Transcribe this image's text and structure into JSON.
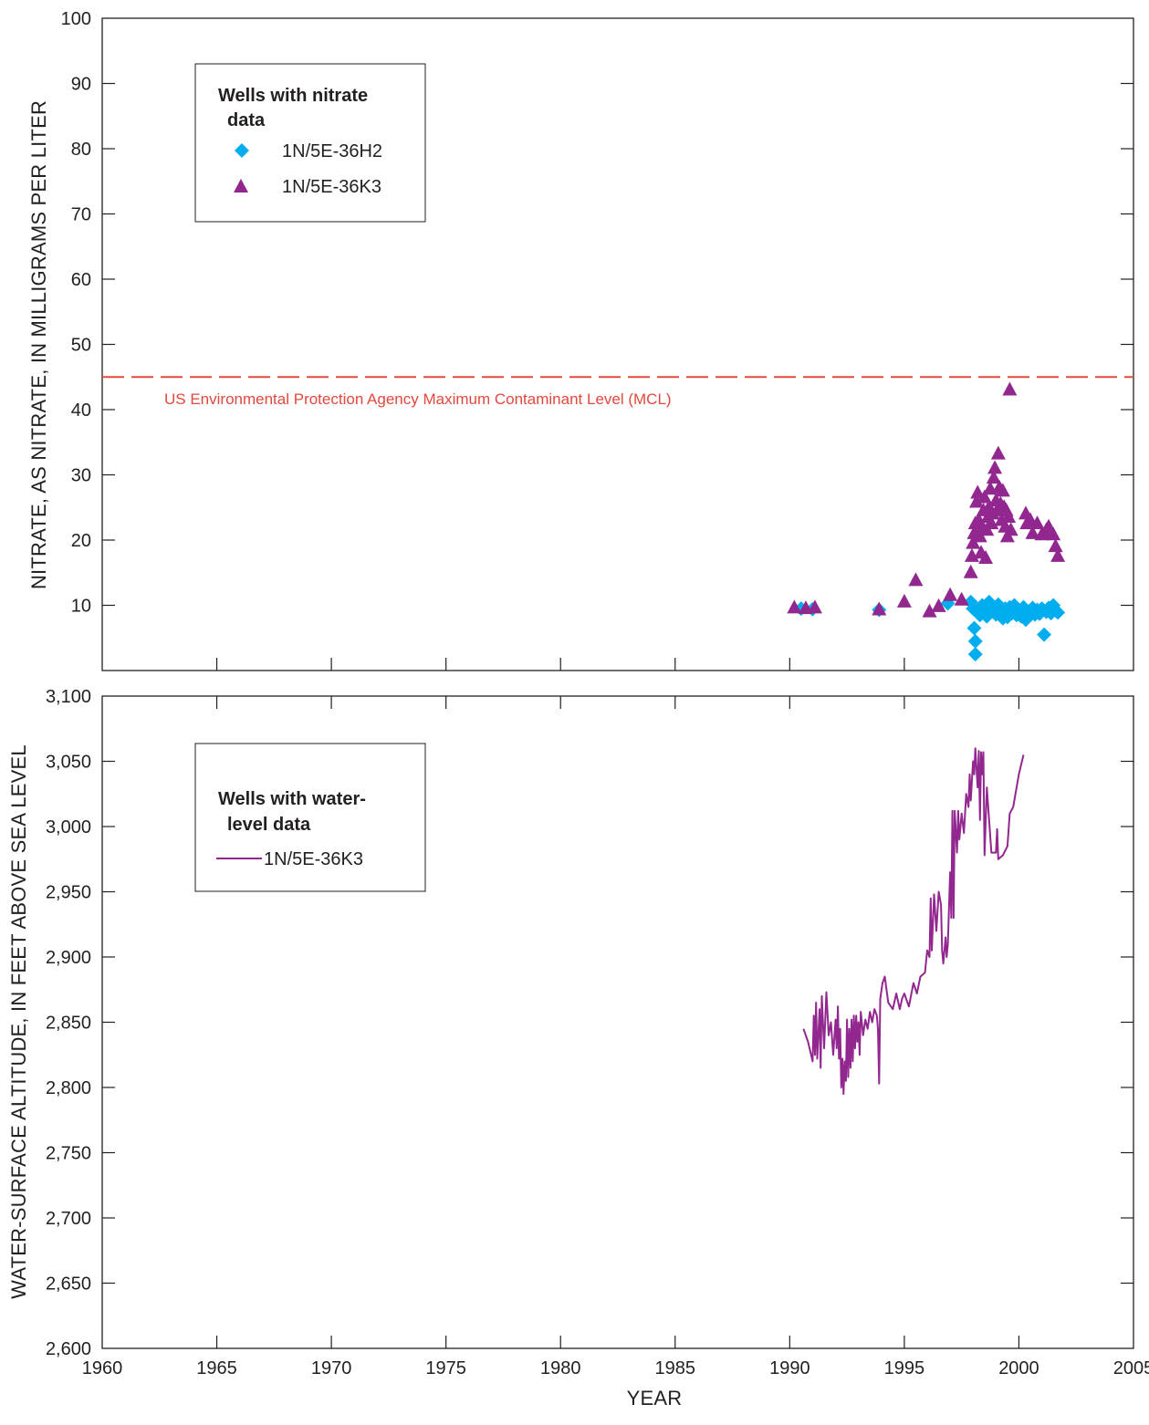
{
  "colors": {
    "axis": "#231f20",
    "h2": "#00aeef",
    "k3": "#92278f",
    "mcl": "#e2483d"
  },
  "icons": {
    "h2_marker": "diamond-icon",
    "k3_marker": "triangle-icon"
  },
  "x_axis": {
    "label": "YEAR",
    "xlim": [
      1960,
      2005
    ],
    "ticks": [
      "1960",
      "1965",
      "1970",
      "1975",
      "1980",
      "1985",
      "1990",
      "1995",
      "2000",
      "2005"
    ]
  },
  "top": {
    "ylabel": "NITRATE, AS NITRATE, IN MILLIGRAMS PER LITER",
    "ylim": [
      0,
      100
    ],
    "yticks": [
      "10",
      "20",
      "30",
      "40",
      "50",
      "60",
      "70",
      "80",
      "90",
      "100"
    ],
    "legend": {
      "title_line1": "Wells with nitrate",
      "title_line2": "data",
      "item1": "1N/5E-36H2",
      "item2": "1N/5E-36K3"
    },
    "mcl_label": "US Environmental Protection Agency Maximum Contaminant Level (MCL)"
  },
  "bottom": {
    "ylabel": "WATER-SURFACE ALTITUDE, IN FEET ABOVE SEA LEVEL",
    "ylim": [
      2600,
      3100
    ],
    "yticks": [
      "2,600",
      "2,650",
      "2,700",
      "2,750",
      "2,800",
      "2,850",
      "2,900",
      "2,950",
      "3,000",
      "3,050",
      "3,100"
    ],
    "legend": {
      "title_line1": "Wells with water-",
      "title_line2": "level data",
      "item1": "1N/5E-36K3"
    }
  },
  "chart_data": [
    {
      "type": "scatter",
      "title": "",
      "xlabel": "YEAR",
      "ylabel": "NITRATE, AS NITRATE, IN MILLIGRAMS PER LITER",
      "xlim": [
        1960,
        2005
      ],
      "ylim": [
        0,
        100
      ],
      "grid": false,
      "legend": "top-left",
      "mcl": 45,
      "series": [
        {
          "name": "1N/5E-36H2",
          "marker": "diamond",
          "points": [
            [
              1990.5,
              9.5
            ],
            [
              1991.0,
              9.4
            ],
            [
              1993.9,
              9.3
            ],
            [
              1996.9,
              10.3
            ],
            [
              1997.9,
              10.5
            ],
            [
              1998.0,
              9.5
            ],
            [
              1998.05,
              6.5
            ],
            [
              1998.1,
              4.5
            ],
            [
              1998.1,
              2.5
            ],
            [
              1998.2,
              9.0
            ],
            [
              1998.3,
              8.5
            ],
            [
              1998.4,
              10.0
            ],
            [
              1998.5,
              9.2
            ],
            [
              1998.6,
              8.3
            ],
            [
              1998.7,
              10.5
            ],
            [
              1998.8,
              9.0
            ],
            [
              1998.9,
              9.6
            ],
            [
              1999.0,
              8.6
            ],
            [
              1999.1,
              10.1
            ],
            [
              1999.2,
              9.2
            ],
            [
              1999.3,
              8.0
            ],
            [
              1999.4,
              9.5
            ],
            [
              1999.5,
              8.2
            ],
            [
              1999.6,
              9.7
            ],
            [
              1999.7,
              8.8
            ],
            [
              1999.8,
              10.0
            ],
            [
              1999.9,
              8.5
            ],
            [
              2000.0,
              9.2
            ],
            [
              2000.1,
              8.3
            ],
            [
              2000.2,
              9.7
            ],
            [
              2000.3,
              7.8
            ],
            [
              2000.4,
              9.0
            ],
            [
              2000.5,
              8.5
            ],
            [
              2000.6,
              9.6
            ],
            [
              2000.7,
              8.6
            ],
            [
              2000.8,
              9.3
            ],
            [
              2000.9,
              8.7
            ],
            [
              2001.0,
              9.5
            ],
            [
              2001.1,
              5.5
            ],
            [
              2001.2,
              9.0
            ],
            [
              2001.3,
              9.6
            ],
            [
              2001.4,
              8.8
            ],
            [
              2001.5,
              10.0
            ],
            [
              2001.6,
              9.2
            ],
            [
              2001.7,
              8.9
            ]
          ]
        },
        {
          "name": "1N/5E-36K3",
          "marker": "triangle",
          "points": [
            [
              1990.2,
              9.6
            ],
            [
              1990.7,
              9.5
            ],
            [
              1991.1,
              9.6
            ],
            [
              1993.9,
              9.3
            ],
            [
              1995.0,
              10.5
            ],
            [
              1995.5,
              13.8
            ],
            [
              1996.1,
              9.0
            ],
            [
              1996.5,
              9.8
            ],
            [
              1997.0,
              11.5
            ],
            [
              1997.5,
              10.8
            ],
            [
              1997.9,
              15.0
            ],
            [
              1997.95,
              17.5
            ],
            [
              1998.0,
              19.5
            ],
            [
              1998.05,
              21.0
            ],
            [
              1998.1,
              22.5
            ],
            [
              1998.15,
              25.8
            ],
            [
              1998.2,
              27.2
            ],
            [
              1998.25,
              23.0
            ],
            [
              1998.3,
              20.5
            ],
            [
              1998.35,
              18.0
            ],
            [
              1998.4,
              22.0
            ],
            [
              1998.45,
              24.5
            ],
            [
              1998.5,
              26.5
            ],
            [
              1998.55,
              17.2
            ],
            [
              1998.6,
              21.5
            ],
            [
              1998.65,
              23.5
            ],
            [
              1998.7,
              25.0
            ],
            [
              1998.75,
              27.8
            ],
            [
              1998.8,
              22.5
            ],
            [
              1998.85,
              24.0
            ],
            [
              1998.9,
              29.5
            ],
            [
              1998.95,
              31.0
            ],
            [
              1999.0,
              26.0
            ],
            [
              1999.05,
              24.5
            ],
            [
              1999.1,
              33.2
            ],
            [
              1999.15,
              28.0
            ],
            [
              1999.2,
              25.5
            ],
            [
              1999.25,
              23.0
            ],
            [
              1999.3,
              27.5
            ],
            [
              1999.35,
              25.0
            ],
            [
              1999.4,
              22.0
            ],
            [
              1999.45,
              24.5
            ],
            [
              1999.5,
              20.5
            ],
            [
              1999.55,
              23.5
            ],
            [
              1999.6,
              43.0
            ],
            [
              1999.65,
              21.5
            ],
            [
              2000.3,
              24.0
            ],
            [
              2000.35,
              22.5
            ],
            [
              2000.5,
              23.0
            ],
            [
              2000.6,
              21.0
            ],
            [
              2000.8,
              22.5
            ],
            [
              2001.0,
              20.8
            ],
            [
              2001.2,
              21.5
            ],
            [
              2001.3,
              22.0
            ],
            [
              2001.4,
              21.0
            ],
            [
              2001.5,
              20.8
            ],
            [
              2001.6,
              19.0
            ],
            [
              2001.7,
              17.5
            ]
          ]
        }
      ]
    },
    {
      "type": "line",
      "title": "",
      "xlabel": "YEAR",
      "ylabel": "WATER-SURFACE ALTITUDE, IN FEET ABOVE SEA LEVEL",
      "xlim": [
        1960,
        2005
      ],
      "ylim": [
        2600,
        3100
      ],
      "grid": false,
      "legend": "top-left",
      "series": [
        {
          "name": "1N/5E-36K3",
          "points": [
            [
              1990.6,
              2845
            ],
            [
              1990.8,
              2835
            ],
            [
              1991.0,
              2820
            ],
            [
              1991.05,
              2855
            ],
            [
              1991.1,
              2825
            ],
            [
              1991.15,
              2865
            ],
            [
              1991.2,
              2822
            ],
            [
              1991.3,
              2860
            ],
            [
              1991.35,
              2815
            ],
            [
              1991.4,
              2870
            ],
            [
              1991.5,
              2830
            ],
            [
              1991.6,
              2873
            ],
            [
              1991.7,
              2840
            ],
            [
              1991.8,
              2850
            ],
            [
              1991.9,
              2825
            ],
            [
              1992.0,
              2852
            ],
            [
              1992.05,
              2830
            ],
            [
              1992.1,
              2862
            ],
            [
              1992.15,
              2822
            ],
            [
              1992.2,
              2845
            ],
            [
              1992.25,
              2800
            ],
            [
              1992.3,
              2822
            ],
            [
              1992.35,
              2795
            ],
            [
              1992.4,
              2820
            ],
            [
              1992.45,
              2805
            ],
            [
              1992.5,
              2852
            ],
            [
              1992.55,
              2808
            ],
            [
              1992.6,
              2845
            ],
            [
              1992.65,
              2815
            ],
            [
              1992.7,
              2852
            ],
            [
              1992.75,
              2820
            ],
            [
              1992.8,
              2855
            ],
            [
              1992.85,
              2830
            ],
            [
              1992.9,
              2855
            ],
            [
              1992.95,
              2835
            ],
            [
              1993.0,
              2850
            ],
            [
              1993.05,
              2825
            ],
            [
              1993.1,
              2858
            ],
            [
              1993.2,
              2840
            ],
            [
              1993.3,
              2852
            ],
            [
              1993.4,
              2845
            ],
            [
              1993.5,
              2858
            ],
            [
              1993.6,
              2850
            ],
            [
              1993.7,
              2860
            ],
            [
              1993.8,
              2855
            ],
            [
              1993.85,
              2845
            ],
            [
              1993.9,
              2803
            ],
            [
              1993.95,
              2868
            ],
            [
              1994.05,
              2880
            ],
            [
              1994.15,
              2885
            ],
            [
              1994.3,
              2865
            ],
            [
              1994.5,
              2860
            ],
            [
              1994.65,
              2872
            ],
            [
              1994.8,
              2860
            ],
            [
              1994.9,
              2868
            ],
            [
              1995.0,
              2872
            ],
            [
              1995.2,
              2862
            ],
            [
              1995.4,
              2880
            ],
            [
              1995.55,
              2872
            ],
            [
              1995.7,
              2885
            ],
            [
              1995.9,
              2888
            ],
            [
              1996.0,
              2905
            ],
            [
              1996.1,
              2900
            ],
            [
              1996.15,
              2945
            ],
            [
              1996.2,
              2905
            ],
            [
              1996.3,
              2948
            ],
            [
              1996.4,
              2920
            ],
            [
              1996.5,
              2950
            ],
            [
              1996.6,
              2940
            ],
            [
              1996.65,
              2905
            ],
            [
              1996.7,
              2895
            ],
            [
              1996.8,
              2915
            ],
            [
              1996.85,
              2900
            ],
            [
              1996.9,
              2910
            ],
            [
              1997.0,
              2965
            ],
            [
              1997.05,
              2930
            ],
            [
              1997.1,
              3012
            ],
            [
              1997.15,
              2930
            ],
            [
              1997.2,
              3012
            ],
            [
              1997.3,
              2980
            ],
            [
              1997.35,
              3012
            ],
            [
              1997.4,
              2990
            ],
            [
              1997.5,
              3010
            ],
            [
              1997.6,
              2995
            ],
            [
              1997.7,
              3025
            ],
            [
              1997.8,
              3015
            ],
            [
              1997.85,
              3040
            ],
            [
              1997.9,
              3020
            ],
            [
              1998.0,
              3050
            ],
            [
              1998.05,
              3040
            ],
            [
              1998.1,
              3060
            ],
            [
              1998.2,
              3030
            ],
            [
              1998.25,
              3058
            ],
            [
              1998.3,
              3005
            ],
            [
              1998.35,
              3057
            ],
            [
              1998.4,
              3040
            ],
            [
              1998.45,
              3057
            ],
            [
              1998.5,
              2978
            ],
            [
              1998.6,
              3030
            ],
            [
              1998.7,
              3005
            ],
            [
              1998.8,
              2980
            ],
            [
              1999.0,
              2980
            ],
            [
              1999.05,
              2998
            ],
            [
              1999.1,
              2975
            ],
            [
              1999.3,
              2978
            ],
            [
              1999.5,
              2985
            ],
            [
              1999.6,
              3010
            ],
            [
              1999.75,
              3015
            ],
            [
              2000.0,
              3040
            ],
            [
              2000.2,
              3055
            ]
          ]
        }
      ]
    }
  ]
}
